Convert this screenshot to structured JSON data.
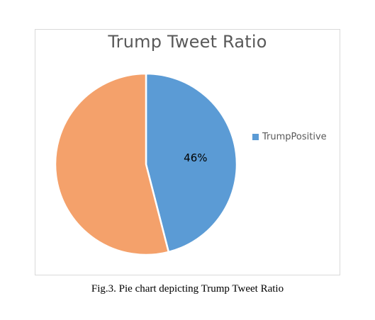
{
  "chart_data": {
    "type": "pie",
    "title": "Trump Tweet Ratio",
    "slices": [
      {
        "label": "TrumpPositive",
        "value": 46,
        "display": "46%",
        "color": "#5b9bd5",
        "legend": true
      },
      {
        "label": "",
        "value": 54,
        "display": "",
        "color": "#f4a16b",
        "legend": false
      }
    ],
    "start_angle_deg": 0,
    "direction": "clockwise",
    "legend_placement": "right"
  },
  "caption": "Fig.3. Pie chart depicting Trump Tweet Ratio"
}
